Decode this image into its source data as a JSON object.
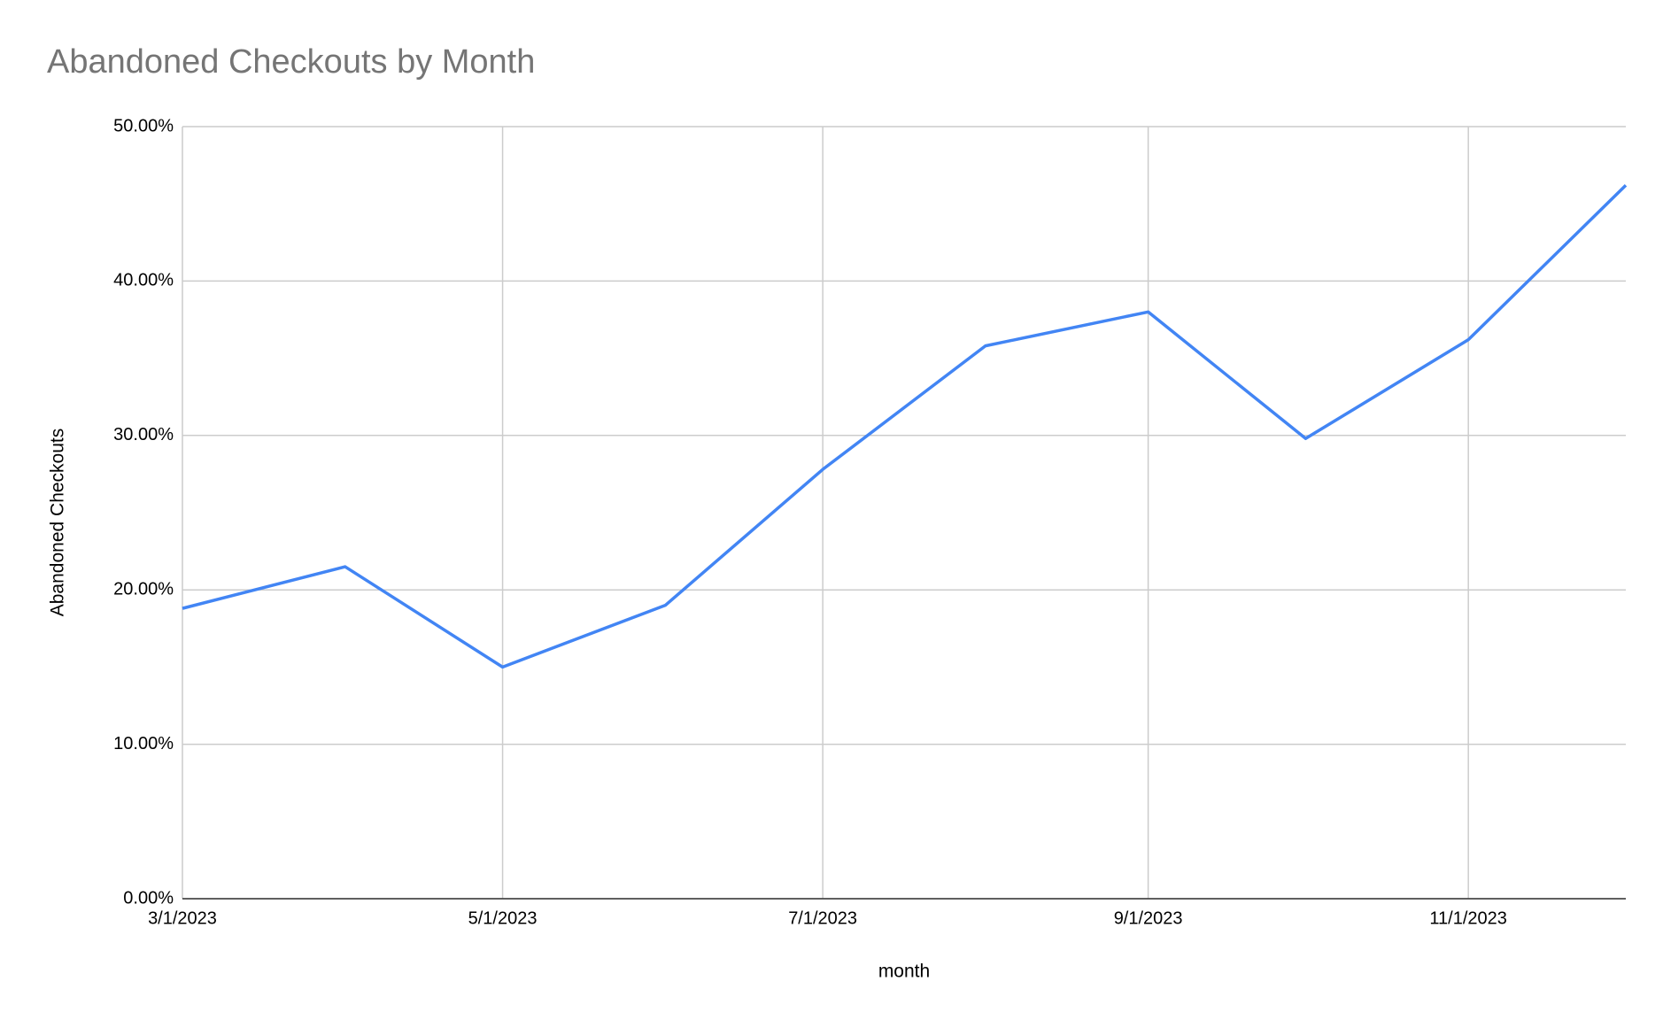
{
  "chart_data": {
    "type": "line",
    "title": "Abandoned Checkouts by Month",
    "x_label": "month",
    "y_label": "Abandoned Checkouts",
    "x": [
      "3/1/2023",
      "4/1/2023",
      "5/1/2023",
      "6/1/2023",
      "7/1/2023",
      "8/1/2023",
      "9/1/2023",
      "10/1/2023",
      "11/1/2023",
      "12/1/2023"
    ],
    "series": [
      {
        "name": "Abandoned Checkouts",
        "color": "#4285f4",
        "values": [
          18.8,
          21.5,
          15.0,
          19.0,
          27.8,
          35.8,
          38.0,
          29.8,
          36.2,
          46.2
        ]
      }
    ],
    "xlim": [
      "3/1/2023",
      "12/1/2023"
    ],
    "xticks": [
      "3/1/2023",
      "5/1/2023",
      "7/1/2023",
      "9/1/2023",
      "11/1/2023"
    ],
    "ylim": [
      0,
      50
    ],
    "yticks": [
      {
        "value": 0,
        "label": "0.00%"
      },
      {
        "value": 10,
        "label": "10.00%"
      },
      {
        "value": 20,
        "label": "20.00%"
      },
      {
        "value": 30,
        "label": "30.00%"
      },
      {
        "value": 40,
        "label": "40.00%"
      },
      {
        "value": 50,
        "label": "50.00%"
      }
    ],
    "grid": true
  }
}
